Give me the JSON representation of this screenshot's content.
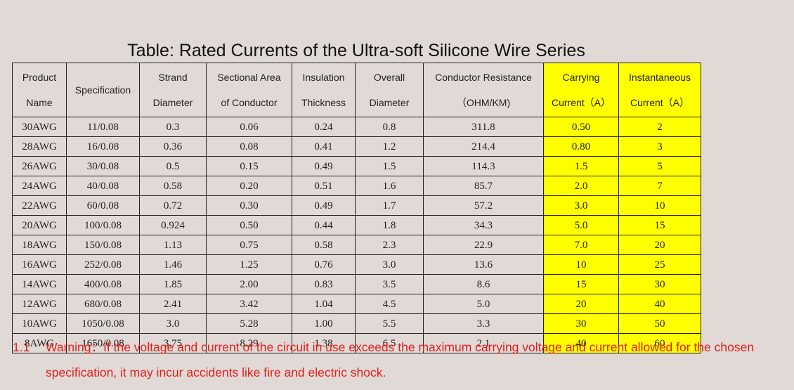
{
  "title": "Table: Rated Currents of the Ultra-soft Silicone Wire Series",
  "table": {
    "header": [
      [
        "Product",
        "Name"
      ],
      [
        "Specification"
      ],
      [
        "Strand",
        "Diameter"
      ],
      [
        "Sectional Area",
        "of Conductor"
      ],
      [
        "Insulation",
        "Thickness"
      ],
      [
        "Overall",
        "Diameter"
      ],
      [
        "Conductor Resistance",
        "（OHM/KM)"
      ],
      [
        "Carrying",
        "Current（A）"
      ],
      [
        "Instantaneous",
        "Current（A）"
      ]
    ],
    "rows": [
      [
        "30AWG",
        "11/0.08",
        "0.3",
        "0.06",
        "0.24",
        "0.8",
        "311.8",
        "0.50",
        "2"
      ],
      [
        "28AWG",
        "16/0.08",
        "0.36",
        "0.08",
        "0.41",
        "1.2",
        "214.4",
        "0.80",
        "3"
      ],
      [
        "26AWG",
        "30/0.08",
        "0.5",
        "0.15",
        "0.49",
        "1.5",
        "114.3",
        "1.5",
        "5"
      ],
      [
        "24AWG",
        "40/0.08",
        "0.58",
        "0.20",
        "0.51",
        "1.6",
        "85.7",
        "2.0",
        "7"
      ],
      [
        "22AWG",
        "60/0.08",
        "0.72",
        "0.30",
        "0.49",
        "1.7",
        "57.2",
        "3.0",
        "10"
      ],
      [
        "20AWG",
        "100/0.08",
        "0.924",
        "0.50",
        "0.44",
        "1.8",
        "34.3",
        "5.0",
        "15"
      ],
      [
        "18AWG",
        "150/0.08",
        "1.13",
        "0.75",
        "0.58",
        "2.3",
        "22.9",
        "7.0",
        "20"
      ],
      [
        "16AWG",
        "252/0.08",
        "1.46",
        "1.25",
        "0.76",
        "3.0",
        "13.6",
        "10",
        "25"
      ],
      [
        "14AWG",
        "400/0.08",
        "1.85",
        "2.00",
        "0.83",
        "3.5",
        "8.6",
        "15",
        "30"
      ],
      [
        "12AWG",
        "680/0.08",
        "2.41",
        "3.42",
        "1.04",
        "4.5",
        "5.0",
        "20",
        "40"
      ],
      [
        "10AWG",
        "1050/0.08",
        "3.0",
        "5.28",
        "1.00",
        "5.5",
        "3.3",
        "30",
        "50"
      ],
      [
        "8AWG",
        "1650/0.08",
        "3.75",
        "8.29",
        "1.38",
        "6.5",
        "2.1",
        "40",
        "60"
      ]
    ]
  },
  "warning": {
    "number": "1.1",
    "text": "Warning：If the voltage and current of the circuit in use exceeds the maximum carrying voltage and current allowed for the chosen specification, it may incur accidents like fire and electric shock."
  }
}
